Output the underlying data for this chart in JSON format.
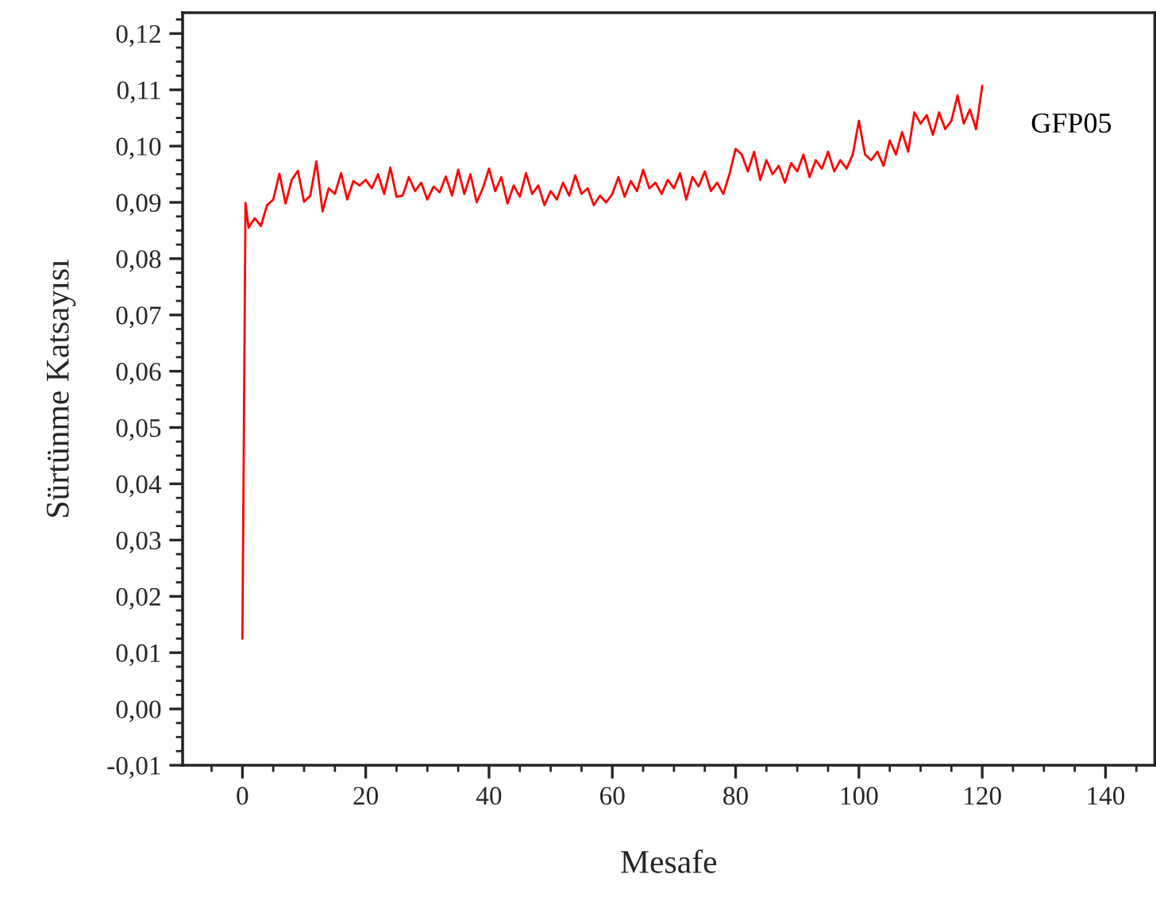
{
  "chart_data": {
    "type": "line",
    "xlabel": "Mesafe",
    "ylabel": "Sürtünme Katsayısı",
    "xlim": [
      -9.7,
      148
    ],
    "ylim": [
      -0.01,
      0.1237
    ],
    "xticks": [
      0,
      20,
      40,
      60,
      80,
      100,
      120,
      140
    ],
    "yticks": [
      {
        "value": -0.01,
        "label": "-0,01"
      },
      {
        "value": 0.0,
        "label": "0,00"
      },
      {
        "value": 0.01,
        "label": "0,01"
      },
      {
        "value": 0.02,
        "label": "0,02"
      },
      {
        "value": 0.03,
        "label": "0,03"
      },
      {
        "value": 0.04,
        "label": "0,04"
      },
      {
        "value": 0.05,
        "label": "0,05"
      },
      {
        "value": 0.06,
        "label": "0,06"
      },
      {
        "value": 0.07,
        "label": "0,07"
      },
      {
        "value": 0.08,
        "label": "0,08"
      },
      {
        "value": 0.09,
        "label": "0,09"
      },
      {
        "value": 0.1,
        "label": "0,10"
      },
      {
        "value": 0.11,
        "label": "0,11"
      },
      {
        "value": 0.12,
        "label": "0,12"
      }
    ],
    "grid": false,
    "legend": false,
    "marker": "none",
    "line_style": "solid",
    "x": [
      0,
      0.5,
      1,
      2,
      3,
      4,
      5,
      6,
      7,
      8,
      9,
      10,
      11,
      12,
      13,
      14,
      15,
      16,
      17,
      18,
      19,
      20,
      21,
      22,
      23,
      24,
      25,
      26,
      27,
      28,
      29,
      30,
      31,
      32,
      33,
      34,
      35,
      36,
      37,
      38,
      39,
      40,
      41,
      42,
      43,
      44,
      45,
      46,
      47,
      48,
      49,
      50,
      51,
      52,
      53,
      54,
      55,
      56,
      57,
      58,
      59,
      60,
      61,
      62,
      63,
      64,
      65,
      66,
      67,
      68,
      69,
      70,
      71,
      72,
      73,
      74,
      75,
      76,
      77,
      78,
      79,
      80,
      81,
      82,
      83,
      84,
      85,
      86,
      87,
      88,
      89,
      90,
      91,
      92,
      93,
      94,
      95,
      96,
      97,
      98,
      99,
      100,
      101,
      102,
      103,
      104,
      105,
      106,
      107,
      108,
      109,
      110,
      111,
      112,
      113,
      114,
      115,
      116,
      117,
      118,
      119,
      120
    ],
    "series": [
      {
        "name": "GFP05",
        "color": "#ff0000",
        "values": [
          0.0125,
          0.0899,
          0.0855,
          0.0872,
          0.0858,
          0.0895,
          0.0905,
          0.0951,
          0.0898,
          0.094,
          0.0956,
          0.0901,
          0.0912,
          0.0973,
          0.0884,
          0.0925,
          0.0915,
          0.0952,
          0.0905,
          0.0938,
          0.093,
          0.094,
          0.0925,
          0.095,
          0.0915,
          0.0962,
          0.091,
          0.0912,
          0.0945,
          0.092,
          0.0935,
          0.0905,
          0.0928,
          0.0918,
          0.0946,
          0.0912,
          0.0958,
          0.0915,
          0.095,
          0.09,
          0.0925,
          0.096,
          0.092,
          0.0945,
          0.0898,
          0.093,
          0.091,
          0.0952,
          0.0915,
          0.093,
          0.0895,
          0.092,
          0.0905,
          0.0935,
          0.0912,
          0.0948,
          0.0915,
          0.0925,
          0.0895,
          0.0912,
          0.09,
          0.0915,
          0.0945,
          0.091,
          0.0938,
          0.092,
          0.0958,
          0.0925,
          0.0935,
          0.0915,
          0.094,
          0.0925,
          0.0952,
          0.0905,
          0.0945,
          0.0928,
          0.0955,
          0.092,
          0.0935,
          0.0915,
          0.095,
          0.0995,
          0.0985,
          0.0955,
          0.099,
          0.094,
          0.0975,
          0.095,
          0.0965,
          0.0935,
          0.097,
          0.0955,
          0.0985,
          0.0945,
          0.0975,
          0.096,
          0.099,
          0.0955,
          0.0975,
          0.096,
          0.0985,
          0.1045,
          0.0985,
          0.0975,
          0.099,
          0.0965,
          0.101,
          0.0985,
          0.1025,
          0.099,
          0.106,
          0.104,
          0.1055,
          0.102,
          0.106,
          0.103,
          0.1045,
          0.109,
          0.104,
          0.1065,
          0.103,
          0.1107
        ]
      }
    ]
  }
}
